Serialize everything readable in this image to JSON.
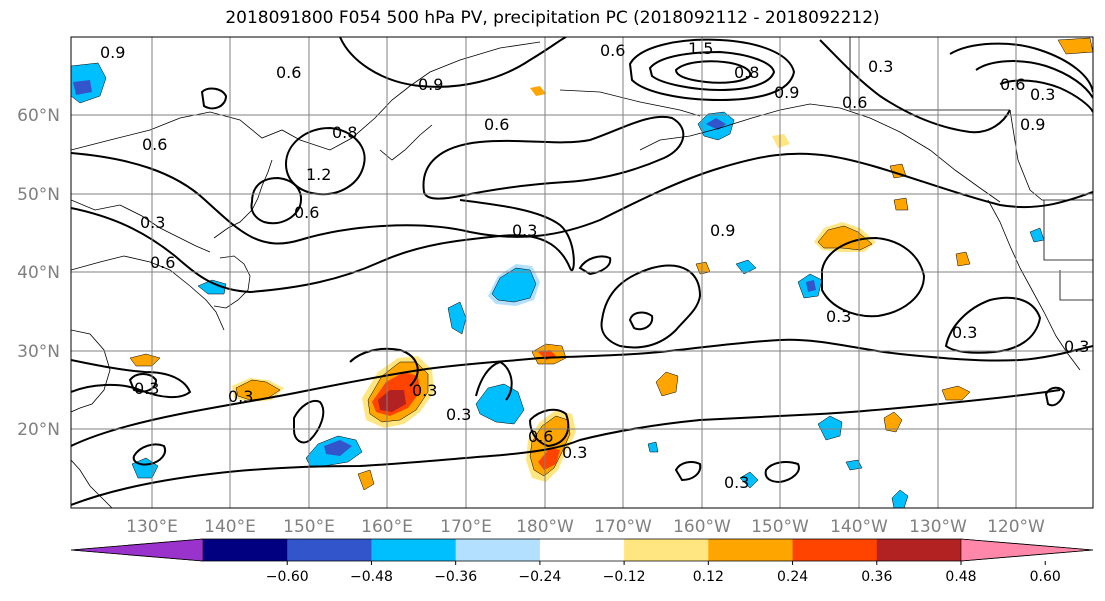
{
  "title": "2018091800 F054 500 hPa PV, precipitation PC (2018092112 - 2018092212)",
  "map": {
    "lon_ticks": [
      "130°E",
      "140°E",
      "150°E",
      "160°E",
      "170°E",
      "180°W",
      "170°W",
      "160°W",
      "150°W",
      "140°W",
      "130°W",
      "120°W"
    ],
    "lat_ticks": [
      "20°N",
      "30°N",
      "40°N",
      "50°N",
      "60°N"
    ],
    "contour_labels": [
      "0.9",
      "0.6",
      "0.6",
      "1.5",
      "0.8",
      "0.6",
      "0.3",
      "0.9",
      "0.6",
      "0.9",
      "0.3",
      "0.6",
      "0.9",
      "0.6",
      "0.8",
      "1.2",
      "0.3",
      "0.6",
      "0.6",
      "0.3",
      "0.9",
      "0.3",
      "0.3",
      "0.3",
      "0.3",
      "0.3",
      "0.3",
      "0.3",
      "0.6",
      "0.3",
      "0.3"
    ]
  },
  "colorbar": {
    "colors": [
      "#9933cc",
      "#000080",
      "#3355cc",
      "#00bfff",
      "#b3e0ff",
      "#ffffff",
      "#ffe680",
      "#ffa500",
      "#ff4400",
      "#b22222",
      "#ff88aa"
    ],
    "tick_labels": [
      "−0.60",
      "−0.48",
      "−0.36",
      "−0.24",
      "−0.12",
      "0.12",
      "0.24",
      "0.36",
      "0.48",
      "0.60"
    ]
  }
}
